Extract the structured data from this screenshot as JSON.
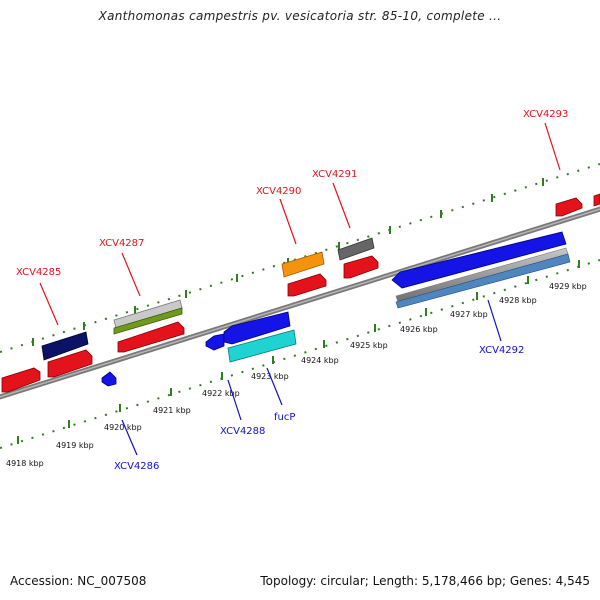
{
  "title": "Xanthomonas campestris pv. vesicatoria str. 85-10, complete ...",
  "footer": {
    "accession": "Accession: NC_007508",
    "topology": "Topology: circular; Length: 5,178,466 bp; Genes: 4,545"
  },
  "colors": {
    "forward_label": "#e0141c",
    "reverse_label": "#1010c8",
    "backbone": "#8a8a8a",
    "dotted_track": "#2e7d1e"
  },
  "axis_ticks": [
    "4918 kbp",
    "4919 kbp",
    "4920 kbp",
    "4921 kbp",
    "4922 kbp",
    "4923 kbp",
    "4924 kbp",
    "4925 kbp",
    "4926 kbp",
    "4927 kbp",
    "4928 kbp",
    "4929 kbp"
  ],
  "gene_labels": {
    "forward": [
      "XCV4285",
      "XCV4287",
      "XCV4290",
      "XCV4291",
      "XCV4293"
    ],
    "reverse": [
      "XCV4286",
      "XCV4288",
      "fucP",
      "XCV4292"
    ]
  }
}
